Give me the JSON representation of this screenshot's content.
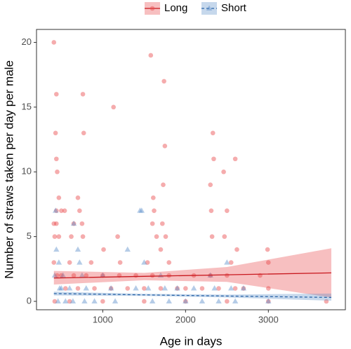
{
  "chart_data": {
    "type": "scatter",
    "x_label": "Age in days",
    "y_label": "Number of straws taken per day per male",
    "xlim": [
      200,
      3930
    ],
    "ylim": [
      -0.65,
      21
    ],
    "xticks": [
      1000,
      2000,
      3000
    ],
    "yticks": [
      0,
      5,
      10,
      15,
      20
    ],
    "grid": false,
    "legend": "top",
    "series": [
      {
        "name": "Long",
        "color": "#e8474a",
        "marker": "circle",
        "line_style": "solid",
        "x": [
          410,
          440,
          430,
          440,
          450,
          470,
          440,
          500,
          410,
          440,
          420,
          470,
          540,
          620,
          650,
          700,
          720,
          760,
          770,
          750,
          760,
          860,
          1010,
          1130,
          1180,
          1210,
          1580,
          1610,
          1620,
          1600,
          1650,
          1700,
          1740,
          1750,
          1730,
          1720,
          1760,
          1800,
          1540,
          2330,
          2340,
          2300,
          2310,
          2320,
          2460,
          2500,
          2470,
          2600,
          2620,
          2550,
          2990,
          3000,
          3700,
          410,
          450,
          500,
          550,
          600,
          650,
          700,
          800,
          900,
          1000,
          1100,
          1200,
          1300,
          1400,
          1500,
          1600,
          1700,
          1800,
          1900,
          2000,
          2100,
          2200,
          2300,
          2400,
          2500,
          2600,
          2700,
          2900,
          3000,
          3000,
          420,
          600,
          1000,
          1500,
          2000,
          2500
        ],
        "values": [
          20,
          16,
          13,
          11,
          10,
          8,
          7,
          7,
          6,
          6,
          5,
          5,
          7,
          5,
          6,
          8,
          7,
          16,
          13,
          6,
          5,
          3,
          4,
          15,
          5,
          3,
          19,
          8,
          7,
          6,
          5,
          4,
          17,
          12,
          9,
          6,
          5,
          3,
          3,
          13,
          11,
          9,
          7,
          5,
          10,
          7,
          5,
          11,
          4,
          3,
          4,
          3,
          0,
          3,
          2,
          2,
          1,
          3,
          2,
          1,
          2,
          1,
          2,
          1,
          2,
          1,
          2,
          1,
          2,
          1,
          2,
          1,
          1,
          2,
          1,
          2,
          1,
          2,
          1,
          1,
          2,
          1,
          0,
          0,
          0,
          0,
          0,
          0,
          0
        ],
        "fit": {
          "x": [
            410,
            1500,
            2500,
            3760
          ],
          "values": [
            1.8,
            1.93,
            2.05,
            2.2
          ],
          "lower": [
            1.3,
            1.63,
            1.5,
            0.3
          ],
          "upper": [
            2.35,
            2.2,
            2.65,
            4.1
          ]
        }
      },
      {
        "name": "Short",
        "color": "#5b8fc9",
        "marker": "triangle",
        "line_style": "dashed",
        "x": [
          430,
          440,
          470,
          420,
          500,
          550,
          600,
          650,
          700,
          720,
          750,
          800,
          900,
          1000,
          1100,
          1150,
          1300,
          1400,
          1450,
          1470,
          1500,
          1550,
          1600,
          1700,
          1750,
          1800,
          1900,
          2000,
          2100,
          2200,
          2300,
          2350,
          2400,
          2500,
          2550,
          2600,
          2700,
          3000,
          460,
          480,
          520,
          640,
          780
        ],
        "values": [
          7,
          4,
          3,
          2,
          1,
          0,
          1,
          6,
          4,
          3,
          2,
          1,
          0,
          2,
          1,
          0,
          4,
          1,
          7,
          7,
          3,
          1,
          0,
          2,
          1,
          0,
          1,
          0,
          1,
          0,
          2,
          1,
          0,
          3,
          1,
          0,
          1,
          0,
          0,
          1,
          2,
          0,
          0
        ],
        "fit": {
          "x": [
            410,
            1500,
            2500,
            3760
          ],
          "values": [
            0.6,
            0.5,
            0.41,
            0.3
          ],
          "lower": [
            0.45,
            0.42,
            0.3,
            0.05
          ],
          "upper": [
            0.75,
            0.58,
            0.52,
            0.6
          ]
        }
      }
    ]
  }
}
